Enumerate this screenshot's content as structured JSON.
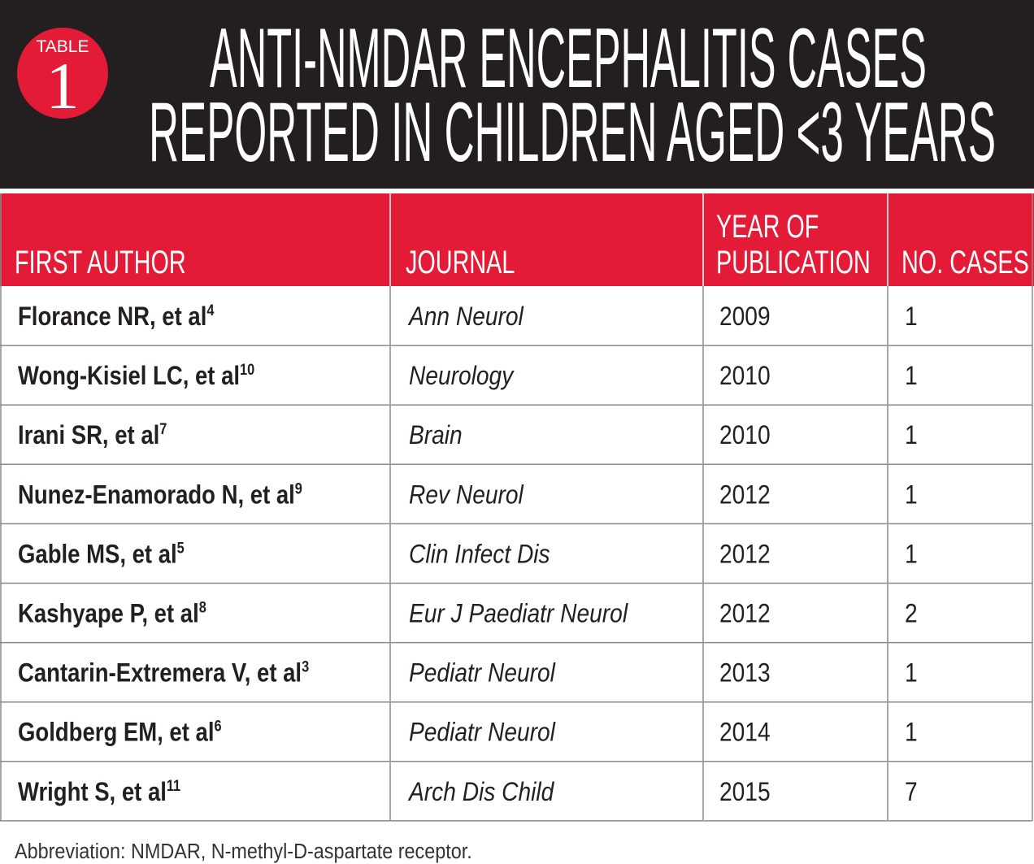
{
  "badge": {
    "label": "TABLE",
    "number": "1"
  },
  "title": [
    "ANTI-NMDAR ENCEPHALITIS CASES",
    "REPORTED IN CHILDREN AGED <3 YEARS"
  ],
  "table": {
    "header": [
      [
        "FIRST AUTHOR"
      ],
      [
        "JOURNAL"
      ],
      [
        "YEAR OF",
        "PUBLICATION"
      ],
      [
        "NO. CASES"
      ]
    ],
    "rows": [
      [
        {
          "author": "Florance NR, et al",
          "ref": "4"
        },
        "Ann Neurol",
        2009,
        1
      ],
      [
        {
          "author": "Wong-Kisiel LC, et al",
          "ref": "10"
        },
        "Neurology",
        2010,
        1
      ],
      [
        {
          "author": "Irani SR, et al",
          "ref": "7"
        },
        "Brain",
        2010,
        1
      ],
      [
        {
          "author": "Nunez-Enamorado N, et al",
          "ref": "9"
        },
        "Rev Neurol",
        2012,
        1
      ],
      [
        {
          "author": "Gable MS, et al",
          "ref": "5"
        },
        "Clin Infect Dis",
        2012,
        1
      ],
      [
        {
          "author": "Kashyape P, et al",
          "ref": "8"
        },
        "Eur J Paediatr Neurol",
        2012,
        2
      ],
      [
        {
          "author": "Cantarin-Extremera V, et al",
          "ref": "3"
        },
        "Pediatr Neurol",
        2013,
        1
      ],
      [
        {
          "author": "Goldberg EM, et al",
          "ref": "6"
        },
        "Pediatr Neurol",
        2014,
        1
      ],
      [
        {
          "author": "Wright S, et al",
          "ref": "11"
        },
        "Arch Dis Child",
        2015,
        7
      ]
    ]
  },
  "footnote": "Abbreviation: NMDAR, N-methyl-D-aspartate receptor."
}
